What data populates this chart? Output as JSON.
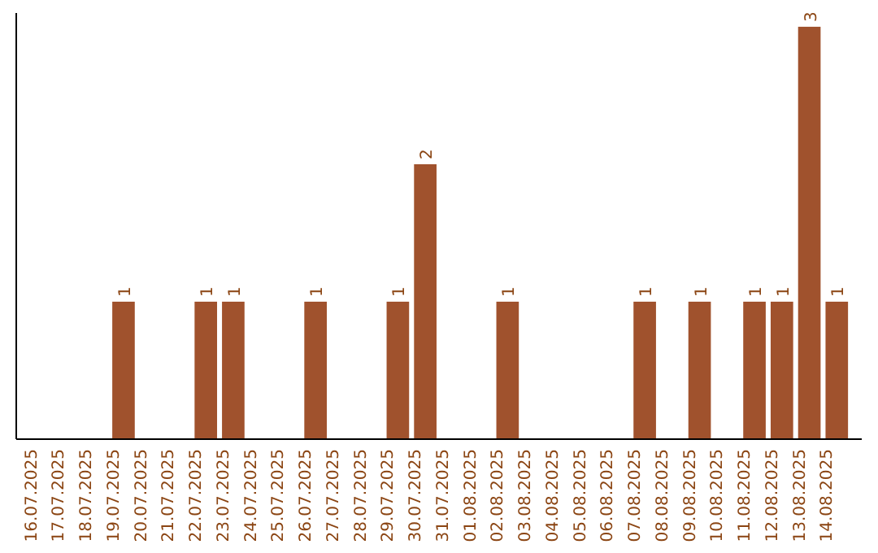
{
  "chart_data": {
    "type": "bar",
    "categories": [
      "16.07.2025",
      "17.07.2025",
      "18.07.2025",
      "19.07.2025",
      "20.07.2025",
      "21.07.2025",
      "22.07.2025",
      "23.07.2025",
      "24.07.2025",
      "25.07.2025",
      "26.07.2025",
      "27.07.2025",
      "28.07.2025",
      "29.07.2025",
      "30.07.2025",
      "31.07.2025",
      "01.08.2025",
      "02.08.2025",
      "03.08.2025",
      "04.08.2025",
      "05.08.2025",
      "06.08.2025",
      "07.08.2025",
      "08.08.2025",
      "09.08.2025",
      "10.08.2025",
      "11.08.2025",
      "12.08.2025",
      "13.08.2025",
      "14.08.2025"
    ],
    "values": [
      0,
      0,
      0,
      1,
      0,
      0,
      1,
      1,
      0,
      0,
      1,
      0,
      0,
      1,
      2,
      0,
      0,
      1,
      0,
      0,
      0,
      0,
      1,
      0,
      1,
      0,
      1,
      1,
      3,
      1
    ],
    "value_labels": [
      null,
      null,
      null,
      "1",
      null,
      null,
      "1",
      "1",
      null,
      null,
      "1",
      null,
      null,
      "1",
      "2",
      null,
      null,
      "1",
      null,
      null,
      null,
      null,
      "1",
      null,
      "1",
      null,
      "1",
      "1",
      "3",
      "1"
    ],
    "color": "#a0522d",
    "ylim": [
      0,
      3.1
    ],
    "tick_labels": "x"
  }
}
